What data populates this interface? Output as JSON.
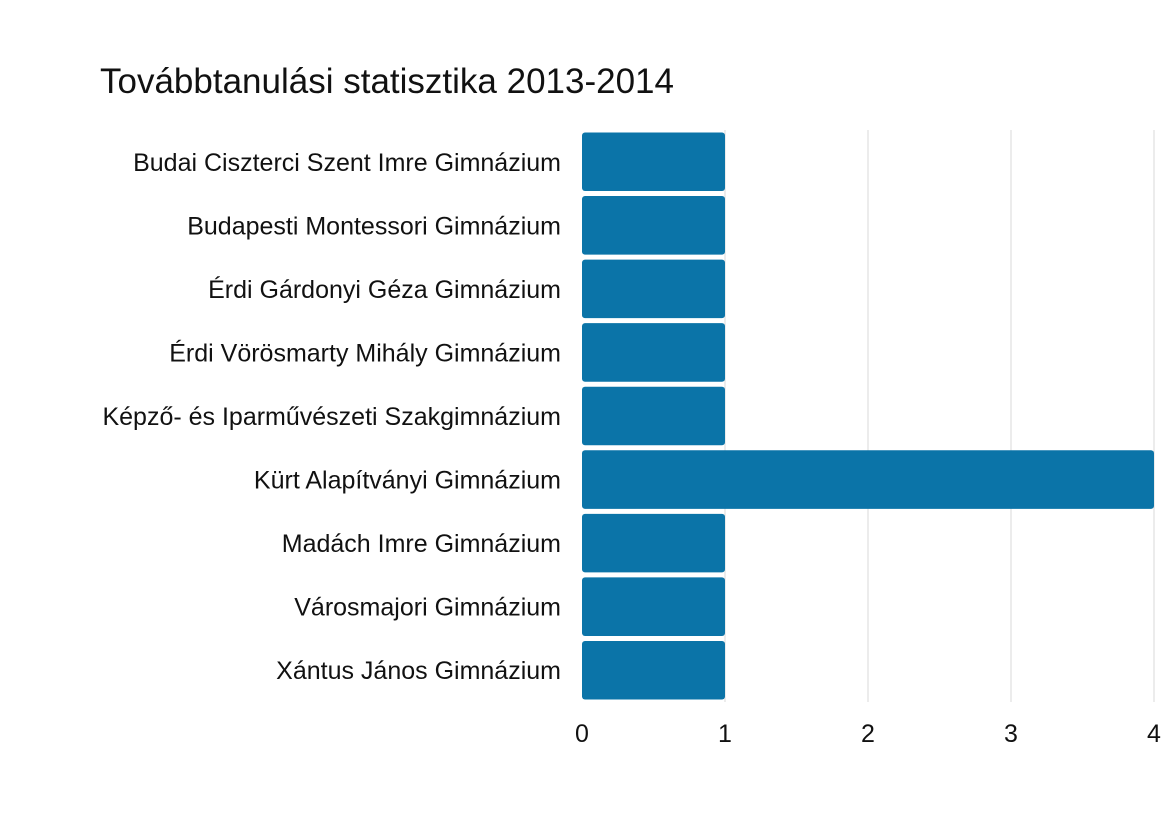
{
  "chart_data": {
    "type": "bar",
    "orientation": "horizontal",
    "title": "Továbbtanulási statisztika 2013-2014",
    "xlabel": "",
    "ylabel": "",
    "categories": [
      "Budai Ciszterci Szent Imre Gimnázium",
      "Budapesti Montessori Gimnázium",
      "Érdi Gárdonyi Géza Gimnázium",
      "Érdi Vörösmarty Mihály Gimnázium",
      "Képző- és Iparművészeti Szakgimnázium",
      "Kürt Alapítványi Gimnázium",
      "Madách Imre Gimnázium",
      "Városmajori Gimnázium",
      "Xántus János Gimnázium"
    ],
    "values": [
      1,
      1,
      1,
      1,
      1,
      4,
      1,
      1,
      1
    ],
    "xlim": [
      0,
      4
    ],
    "xticks": [
      "0",
      "1",
      "2",
      "3",
      "4"
    ],
    "grid": true,
    "legend": "none",
    "bar_color": "#0b74a8"
  }
}
